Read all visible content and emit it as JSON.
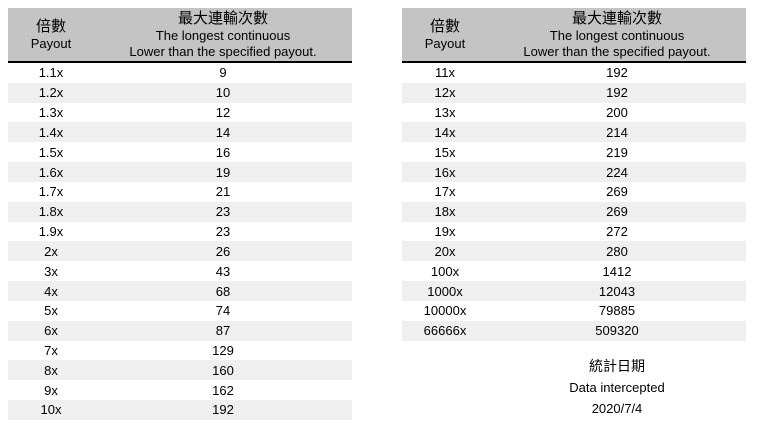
{
  "chart_data": [
    {
      "type": "table",
      "position": "left",
      "header": {
        "col1_zh": "倍數",
        "col1_en": "Payout",
        "col2_zh": "最大連輸次數",
        "col2_en_line1": "The longest continuous",
        "col2_en_line2": "Lower than the specified payout."
      },
      "columns": [
        "倍數 Payout",
        "最大連輸次數 The longest continuous Lower than the specified payout."
      ],
      "rows": [
        [
          "1.1x",
          "9"
        ],
        [
          "1.2x",
          "10"
        ],
        [
          "1.3x",
          "12"
        ],
        [
          "1.4x",
          "14"
        ],
        [
          "1.5x",
          "16"
        ],
        [
          "1.6x",
          "19"
        ],
        [
          "1.7x",
          "21"
        ],
        [
          "1.8x",
          "23"
        ],
        [
          "1.9x",
          "23"
        ],
        [
          "2x",
          "26"
        ],
        [
          "3x",
          "43"
        ],
        [
          "4x",
          "68"
        ],
        [
          "5x",
          "74"
        ],
        [
          "6x",
          "87"
        ],
        [
          "7x",
          "129"
        ],
        [
          "8x",
          "160"
        ],
        [
          "9x",
          "162"
        ],
        [
          "10x",
          "192"
        ]
      ]
    },
    {
      "type": "table",
      "position": "right",
      "header": {
        "col1_zh": "倍數",
        "col1_en": "Payout",
        "col2_zh": "最大連輸次數",
        "col2_en_line1": "The longest continuous",
        "col2_en_line2": "Lower than the specified payout."
      },
      "columns": [
        "倍數 Payout",
        "最大連輸次數 The longest continuous Lower than the specified payout."
      ],
      "rows": [
        [
          "11x",
          "192"
        ],
        [
          "12x",
          "192"
        ],
        [
          "13x",
          "200"
        ],
        [
          "14x",
          "214"
        ],
        [
          "15x",
          "219"
        ],
        [
          "16x",
          "224"
        ],
        [
          "17x",
          "269"
        ],
        [
          "18x",
          "269"
        ],
        [
          "19x",
          "272"
        ],
        [
          "20x",
          "280"
        ],
        [
          "100x",
          "1412"
        ],
        [
          "1000x",
          "12043"
        ],
        [
          "10000x",
          "79885"
        ],
        [
          "66666x",
          "509320"
        ]
      ]
    }
  ],
  "footer": {
    "title_zh": "統計日期",
    "title_en": "Data intercepted",
    "date": "2020/7/4"
  },
  "colors": {
    "background": "#ffffff",
    "header_bg": "#c4c4c4",
    "row_alt_bg": "#efefef",
    "text": "#000000",
    "border": "#000000"
  }
}
